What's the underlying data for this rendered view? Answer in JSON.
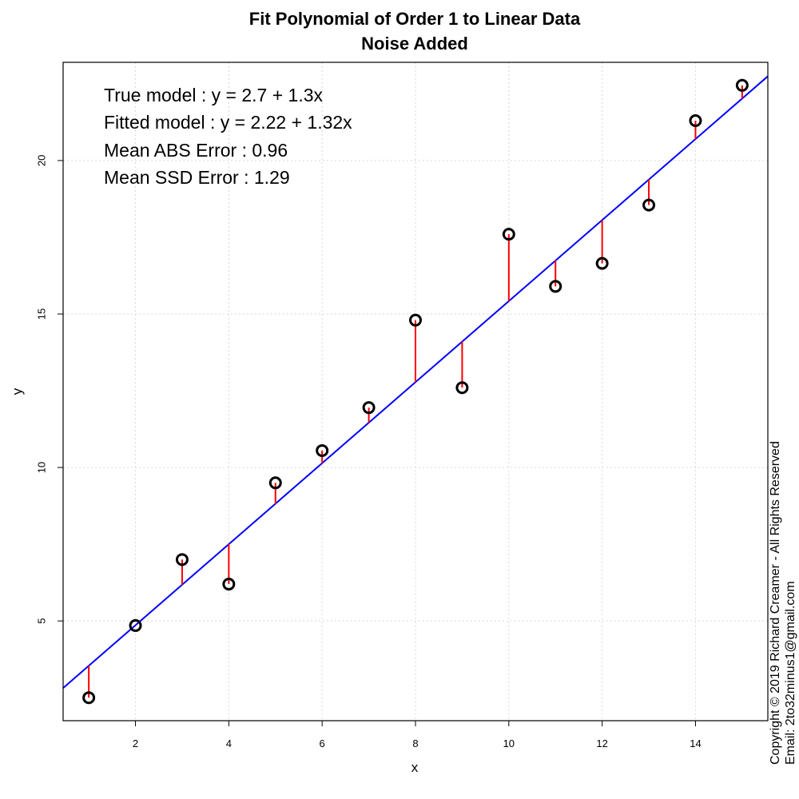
{
  "chart_data": {
    "type": "scatter",
    "title": "Fit Polynomial of Order 1 to Linear Data",
    "subtitle": "Noise Added",
    "xlabel": "x",
    "ylabel": "y",
    "xlim": [
      0.45,
      15.55
    ],
    "ylim": [
      1.75,
      23.2
    ],
    "xticks": [
      2,
      4,
      6,
      8,
      10,
      12,
      14
    ],
    "yticks": [
      5,
      10,
      15,
      20
    ],
    "grid": true,
    "points": {
      "x": [
        1,
        2,
        3,
        4,
        5,
        6,
        7,
        8,
        9,
        10,
        11,
        12,
        13,
        14,
        15
      ],
      "y": [
        2.5,
        4.85,
        7.0,
        6.2,
        9.5,
        10.55,
        11.95,
        14.8,
        12.6,
        17.6,
        15.9,
        16.65,
        18.55,
        21.3,
        22.45
      ]
    },
    "fit": {
      "intercept": 2.22,
      "slope": 1.32
    },
    "annotations": [
      "True model : y = 2.7 + 1.3x",
      "Fitted model : y = 2.22 + 1.32x",
      "Mean ABS Error : 0.96",
      "Mean SSD Error : 1.29"
    ],
    "copyright": [
      "Copyright © 2019 Richard Creamer - All Rights Reserved",
      "Email: 2to32minus1@gmail.com"
    ],
    "colors": {
      "points": "#000000",
      "fit_line": "#0000ff",
      "residuals": "#ff0000",
      "grid": "#d9d9d9"
    }
  }
}
